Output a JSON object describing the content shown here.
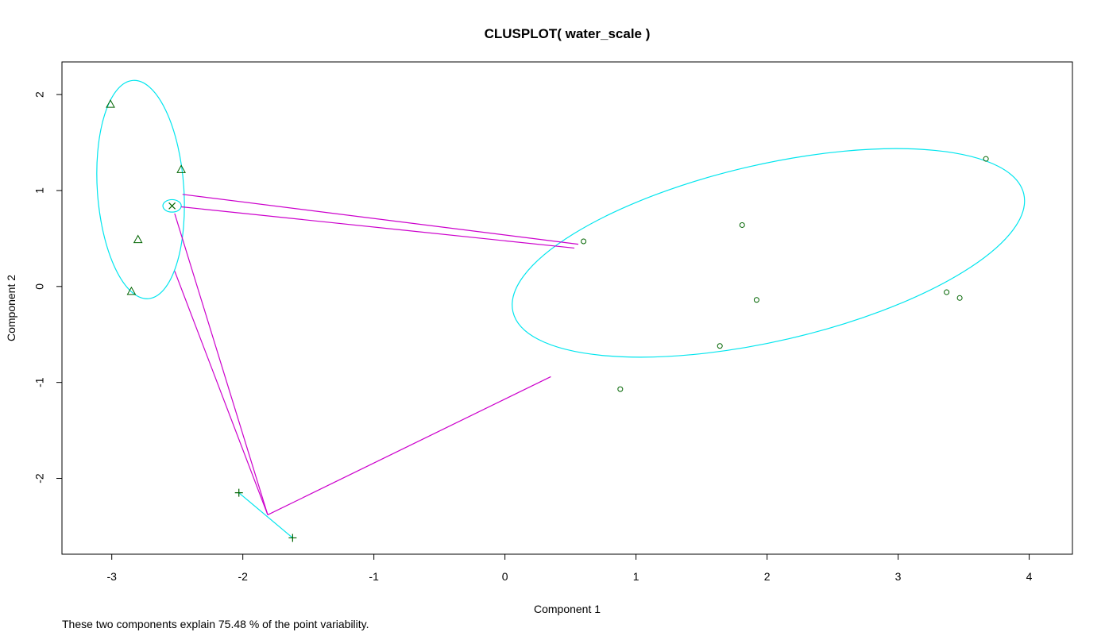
{
  "chart_data": {
    "type": "scatter",
    "title": "CLUSPLOT( water_scale )",
    "subtitle": "These two components explain 75.48 % of the point variability.",
    "xlabel": "Component 1",
    "ylabel": "Component 2",
    "xlim": [
      -3.38,
      4.33
    ],
    "ylim": [
      -2.79,
      2.34
    ],
    "x_ticks": [
      -3,
      -2,
      -1,
      0,
      1,
      2,
      3,
      4
    ],
    "y_ticks": [
      -2,
      -1,
      0,
      1,
      2
    ],
    "grid": false,
    "legend": "none",
    "colors": {
      "ellipse": "#00e5ee",
      "connector": "#cc00cc",
      "point": "#006400"
    },
    "clusters": [
      {
        "marker": "triangle",
        "points": [
          {
            "x": -3.01,
            "y": 1.9
          },
          {
            "x": -2.47,
            "y": 1.22
          },
          {
            "x": -2.8,
            "y": 0.49
          },
          {
            "x": -2.85,
            "y": -0.05
          }
        ],
        "ellipse": {
          "cx": -2.78,
          "cy": 1.01,
          "rx": 0.33,
          "ry": 1.14,
          "angle_deg": 4
        }
      },
      {
        "marker": "cross",
        "points": [
          {
            "x": -2.54,
            "y": 0.84
          }
        ],
        "ellipse": {
          "cx": -2.54,
          "cy": 0.84,
          "rx": 0.07,
          "ry": 0.065,
          "angle_deg": 0
        }
      },
      {
        "marker": "plus",
        "points": [
          {
            "x": -2.03,
            "y": -2.15
          },
          {
            "x": -1.62,
            "y": -2.62
          }
        ],
        "ellipse": {
          "segment": true,
          "x1": -2.03,
          "y1": -2.15,
          "x2": -1.62,
          "y2": -2.62
        }
      },
      {
        "marker": "circle",
        "points": [
          {
            "x": 3.67,
            "y": 1.33
          },
          {
            "x": 1.81,
            "y": 0.64
          },
          {
            "x": 0.6,
            "y": 0.47
          },
          {
            "x": 1.92,
            "y": -0.14
          },
          {
            "x": 3.37,
            "y": -0.06
          },
          {
            "x": 3.47,
            "y": -0.12
          },
          {
            "x": 1.64,
            "y": -0.62
          },
          {
            "x": 0.88,
            "y": -1.07
          }
        ],
        "ellipse": {
          "cx": 2.01,
          "cy": 0.35,
          "rx": 2.0,
          "ry": 0.92,
          "angle_deg": 13
        }
      }
    ],
    "connectors": [
      {
        "x1": -2.46,
        "y1": 0.96,
        "x2": 0.56,
        "y2": 0.44
      },
      {
        "x1": -2.47,
        "y1": 0.83,
        "x2": 0.53,
        "y2": 0.4
      },
      {
        "x1": -2.52,
        "y1": 0.76,
        "x2": -1.81,
        "y2": -2.38
      },
      {
        "x1": -2.52,
        "y1": 0.16,
        "x2": -1.81,
        "y2": -2.38
      },
      {
        "x1": -1.81,
        "y1": -2.38,
        "x2": 0.35,
        "y2": -0.94
      }
    ]
  }
}
